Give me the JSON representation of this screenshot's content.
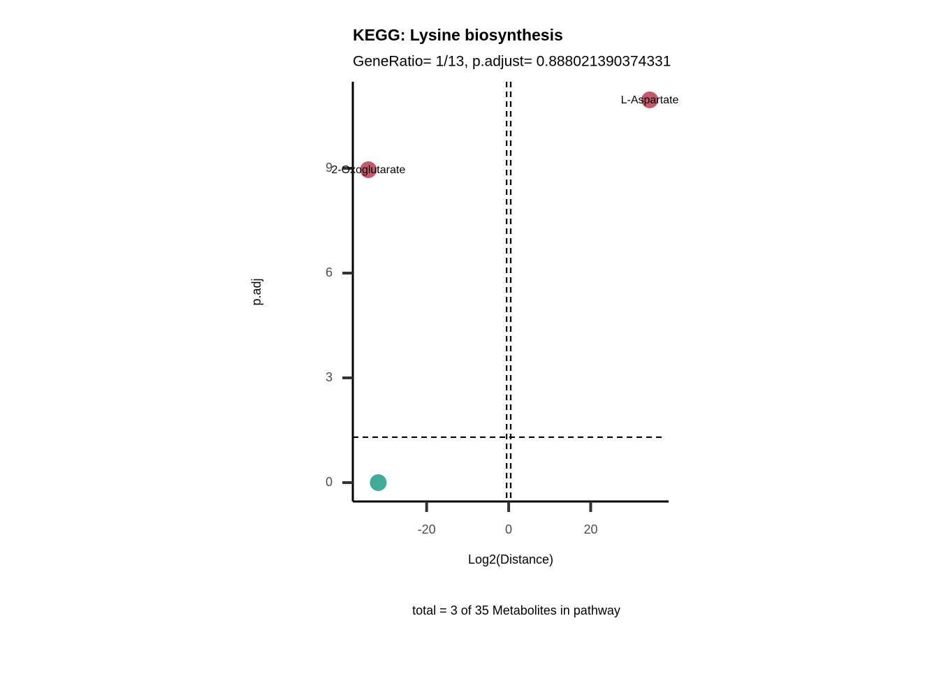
{
  "chart_data": {
    "type": "scatter",
    "title": "KEGG: Lysine biosynthesis",
    "subtitle": "GeneRatio= 1/13, p.adjust= 0.888021390374331",
    "x_label": "Log2(Distance)",
    "y_label": "p.adj",
    "caption": "total = 3 of 35 Metabolites in pathway",
    "x": [
      34.4,
      -34.2,
      -31.8
    ],
    "values": [
      10.96,
      8.96,
      0
    ],
    "colors": [
      "#c35a6a",
      "#c35a6a",
      "#42ab97"
    ],
    "point_labels": [
      "L-Aspartate",
      "2-Oxoglutarate",
      null
    ],
    "xlim": [
      -38,
      39
    ],
    "ylim": [
      -0.54,
      11.48
    ],
    "xticks": [
      -20,
      0,
      20
    ],
    "yticks": [
      0,
      3,
      6,
      9
    ],
    "vlines": [
      -0.5,
      0.5
    ],
    "hline": 1.301
  }
}
